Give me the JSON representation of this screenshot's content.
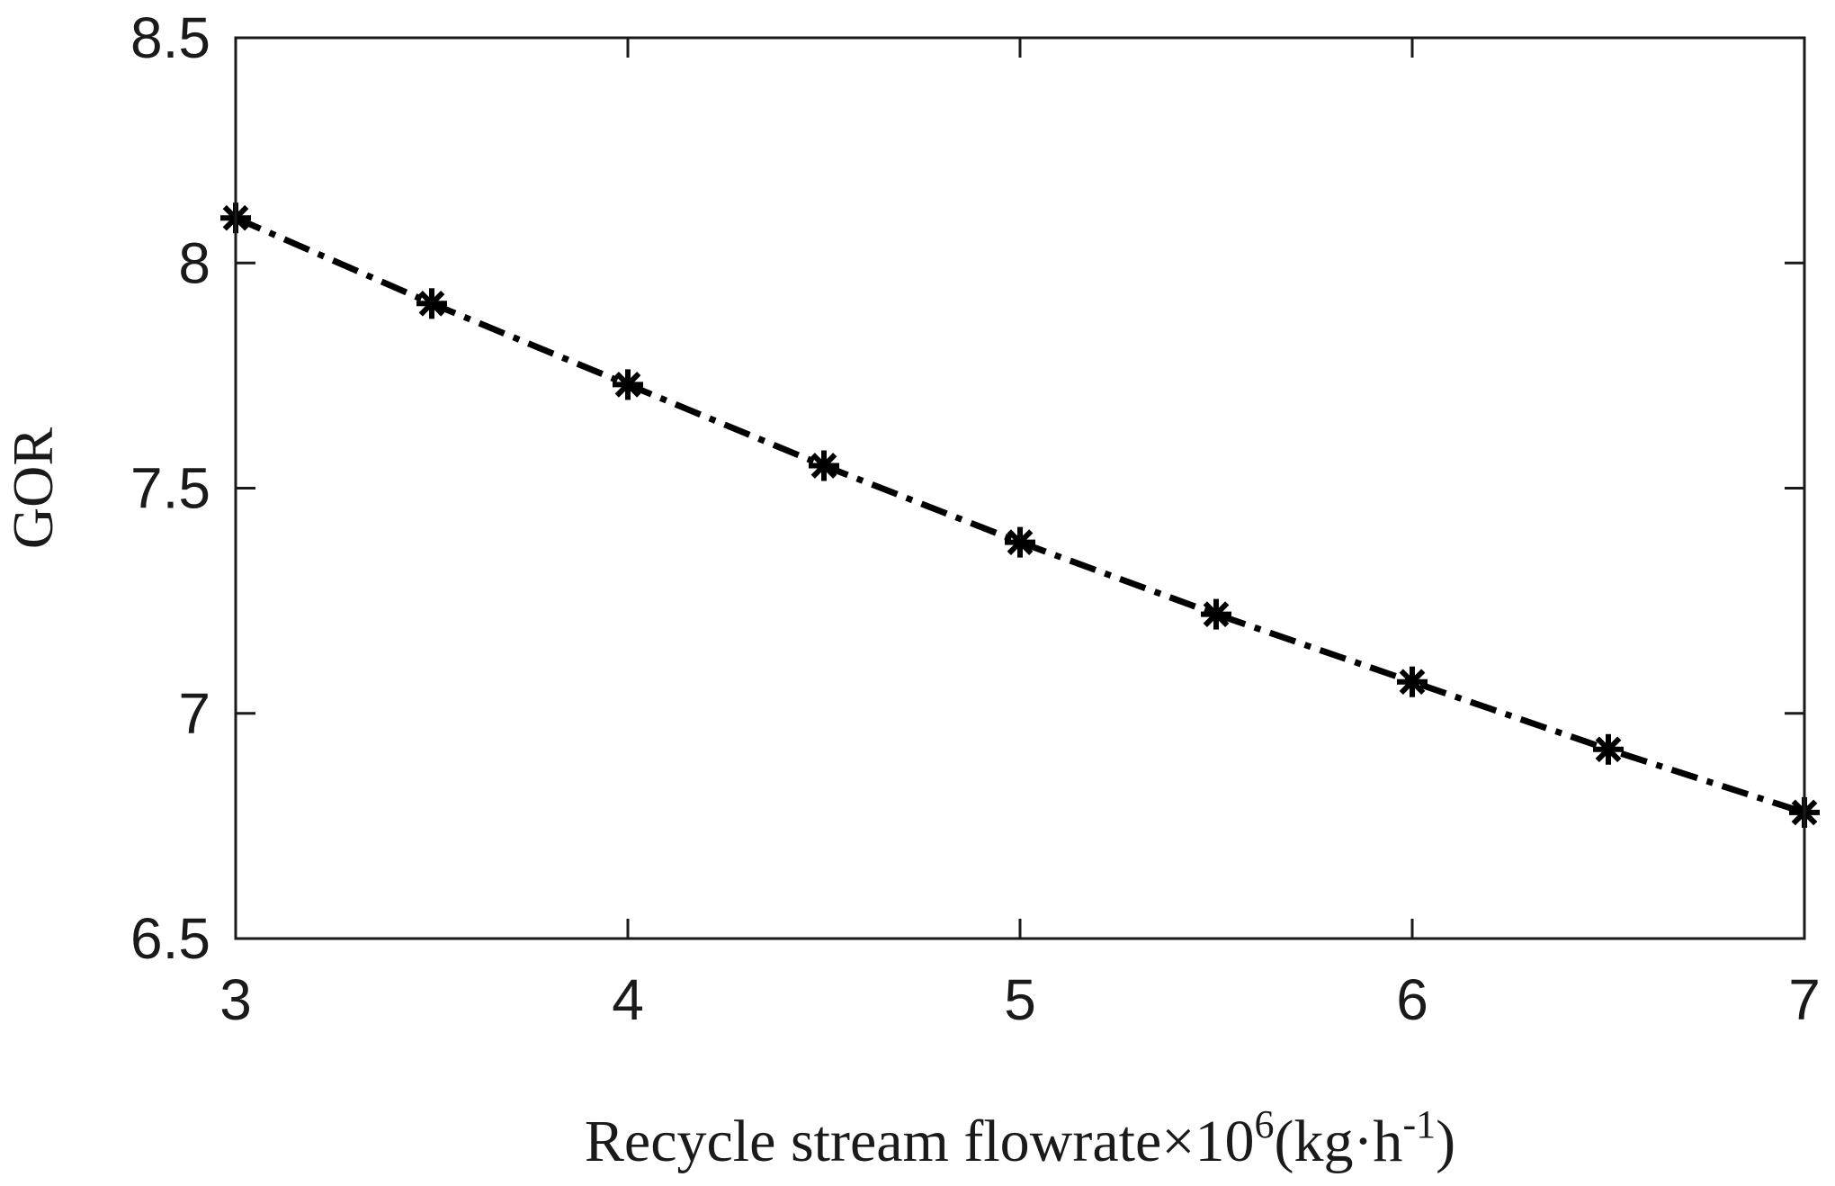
{
  "chart_data": {
    "type": "line",
    "title": "",
    "xlabel": {
      "prefix": "Recycle stream flowrate×10",
      "exponent": "6",
      "unit_open": "(kg·h",
      "unit_exponent": "-1",
      "unit_close": ")"
    },
    "ylabel": "GOR",
    "xlim": [
      3,
      7
    ],
    "ylim": [
      6.5,
      8.5
    ],
    "xticks": [
      3,
      4,
      5,
      6,
      7
    ],
    "xtick_labels": [
      "3",
      "4",
      "5",
      "6",
      "7"
    ],
    "yticks": [
      6.5,
      7,
      7.5,
      8,
      8.5
    ],
    "ytick_labels": [
      "6.5",
      "7",
      "7.5",
      "8",
      "8.5"
    ],
    "grid": false,
    "legend": "none",
    "series": [
      {
        "line_style": "dash-dot",
        "marker": "asterisk",
        "color": "#000000",
        "x": [
          3,
          3.5,
          4,
          4.5,
          5,
          5.5,
          6,
          6.5,
          7
        ],
        "y": [
          8.1,
          7.91,
          7.73,
          7.55,
          7.38,
          7.22,
          7.07,
          6.92,
          6.78
        ]
      }
    ]
  }
}
